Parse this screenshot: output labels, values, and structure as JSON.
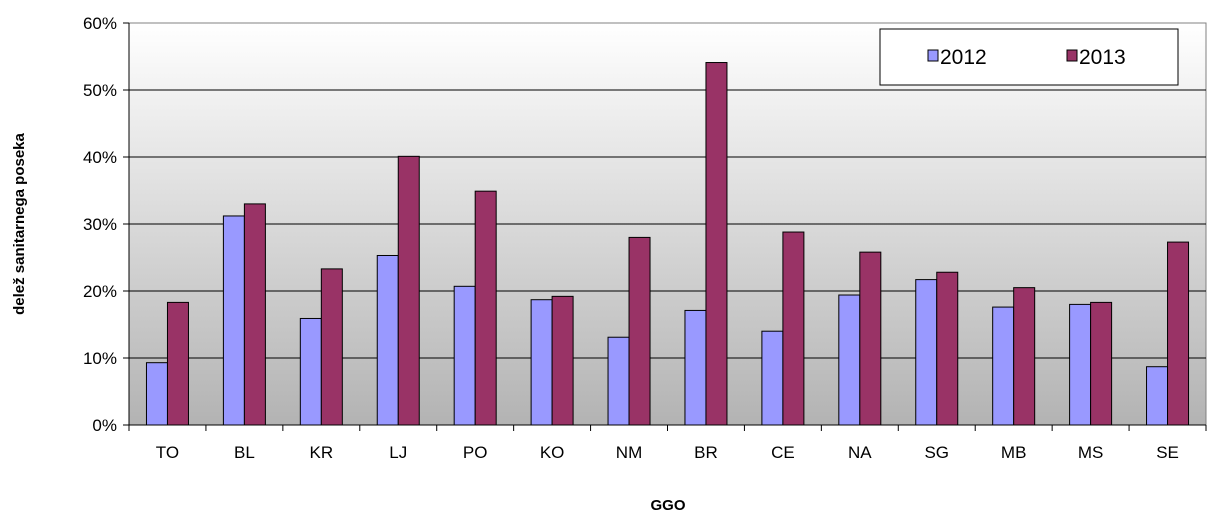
{
  "chart_data": {
    "type": "bar",
    "title": "",
    "xlabel": "GGO",
    "ylabel": "delež sanitarnega poseka",
    "categories": [
      "TO",
      "BL",
      "KR",
      "LJ",
      "PO",
      "KO",
      "NM",
      "BR",
      "CE",
      "NA",
      "SG",
      "MB",
      "MS",
      "SE"
    ],
    "series": [
      {
        "name": "2012",
        "color": "#9999ff",
        "values": [
          9.3,
          31.2,
          15.9,
          25.3,
          20.7,
          18.7,
          13.1,
          17.1,
          14.0,
          19.4,
          21.7,
          17.6,
          18.0,
          8.7
        ]
      },
      {
        "name": "2013",
        "color": "#993366",
        "values": [
          18.3,
          33.0,
          23.3,
          40.1,
          34.9,
          19.2,
          28.0,
          54.1,
          28.8,
          25.8,
          22.8,
          20.5,
          18.3,
          27.3
        ]
      }
    ],
    "ylim": [
      0,
      60
    ],
    "yticks": [
      0,
      10,
      20,
      30,
      40,
      50,
      60
    ],
    "ytick_labels": [
      "0%",
      "10%",
      "20%",
      "30%",
      "40%",
      "50%",
      "60%"
    ],
    "grid": true,
    "legend_position": "top-right",
    "background": "gradient gray-white"
  }
}
